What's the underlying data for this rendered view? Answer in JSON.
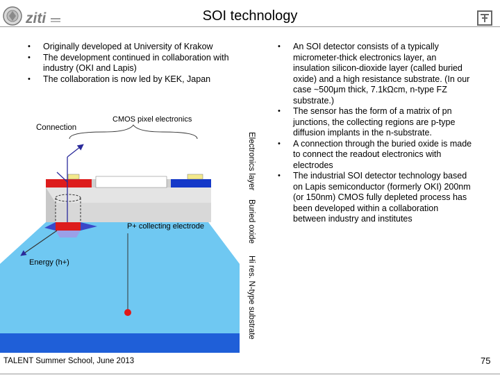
{
  "header": {
    "title": "SOI technology",
    "logo_text": "ziti"
  },
  "left_bullets": [
    "Originally developed at University of Krakow",
    "The development continued in collaboration with industry (OKI and Lapis)",
    "The collaboration is now led by KEK, Japan"
  ],
  "diagram": {
    "connection_label": "Connection",
    "cmos_label": "CMOS pixel electronics",
    "p_electrode_label": "P+ collecting electrode",
    "energy_label": "Energy (h+)",
    "layer_electronics": "Electronics layer",
    "layer_buried": "Buried oxide",
    "layer_substrate": "Hi res. N-type substrate"
  },
  "right_bullets": [
    "An SOI detector consists of a typically micrometer-thick electronics layer, an insulation silicon-dioxide layer (called buried oxide) and a high resistance substrate. (In our case ~500μm thick, 7.1kΩcm, n-type FZ substrate.)",
    "The sensor has the form of a matrix of pn junctions, the collecting regions are p-type diffusion implants in the n-substrate.",
    "A connection through the buried oxide is made to connect the readout electronics with electrodes",
    "The industrial SOI detector technology based on Lapis semiconductor (formerly OKI) 200nm (or 150nm) CMOS fully depleted process has been developed within a collaboration between industry and institutes"
  ],
  "footer": {
    "event": "TALENT Summer School, June 2013",
    "page_number": "75"
  }
}
